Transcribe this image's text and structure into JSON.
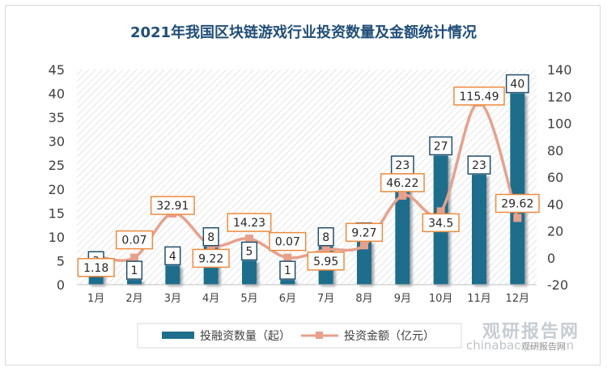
{
  "chart_data": {
    "type": "bar+line",
    "title": "2021年我国区块链游戏行业投资数量及金额统计情况",
    "categories": [
      "1月",
      "2月",
      "3月",
      "4月",
      "5月",
      "6月",
      "7月",
      "8月",
      "9月",
      "10月",
      "11月",
      "12月"
    ],
    "series": [
      {
        "name": "投融资数量（起）",
        "type": "bar",
        "axis": "left",
        "color": "#1f6e8c",
        "values": [
          3,
          1,
          4,
          8,
          5,
          1,
          8,
          9,
          23,
          27,
          23,
          40
        ]
      },
      {
        "name": "投资金额（亿元）",
        "type": "line",
        "axis": "right",
        "color": "#e8a08a",
        "values": [
          1.18,
          0.07,
          32.91,
          9.22,
          14.23,
          0.07,
          5.95,
          9.27,
          46.22,
          34.5,
          115.49,
          29.62
        ]
      }
    ],
    "y_left": {
      "min": 0,
      "max": 45,
      "step": 5,
      "ticks": [
        "0",
        "5",
        "10",
        "15",
        "20",
        "25",
        "30",
        "35",
        "40",
        "45"
      ]
    },
    "y_right": {
      "min": -20,
      "max": 140,
      "step": 20,
      "ticks": [
        "-20",
        "0",
        "20",
        "40",
        "60",
        "80",
        "100",
        "120",
        "140"
      ]
    },
    "bar_labels": [
      "3",
      "1",
      "4",
      "8",
      "5",
      "1",
      "8",
      "9",
      "23",
      "27",
      "23",
      "40"
    ],
    "line_labels": [
      "1.18",
      "0.07",
      "32.91",
      "9.22",
      "14.23",
      "0.07",
      "5.95",
      "9.27",
      "46.22",
      "34.5",
      "115.49",
      "29.62"
    ],
    "legend_position": "bottom",
    "grid": "hatched-background",
    "colors": {
      "bar": "#1f6e8c",
      "line": "#e8a08a",
      "line_label_border": "#ef8a3c",
      "bar_label_border": "#1f4e6e",
      "title": "#1f4e79"
    }
  },
  "watermark": {
    "main": "观研报告网",
    "sub": "chinabaogao.com",
    "tag": "观研报告网"
  }
}
